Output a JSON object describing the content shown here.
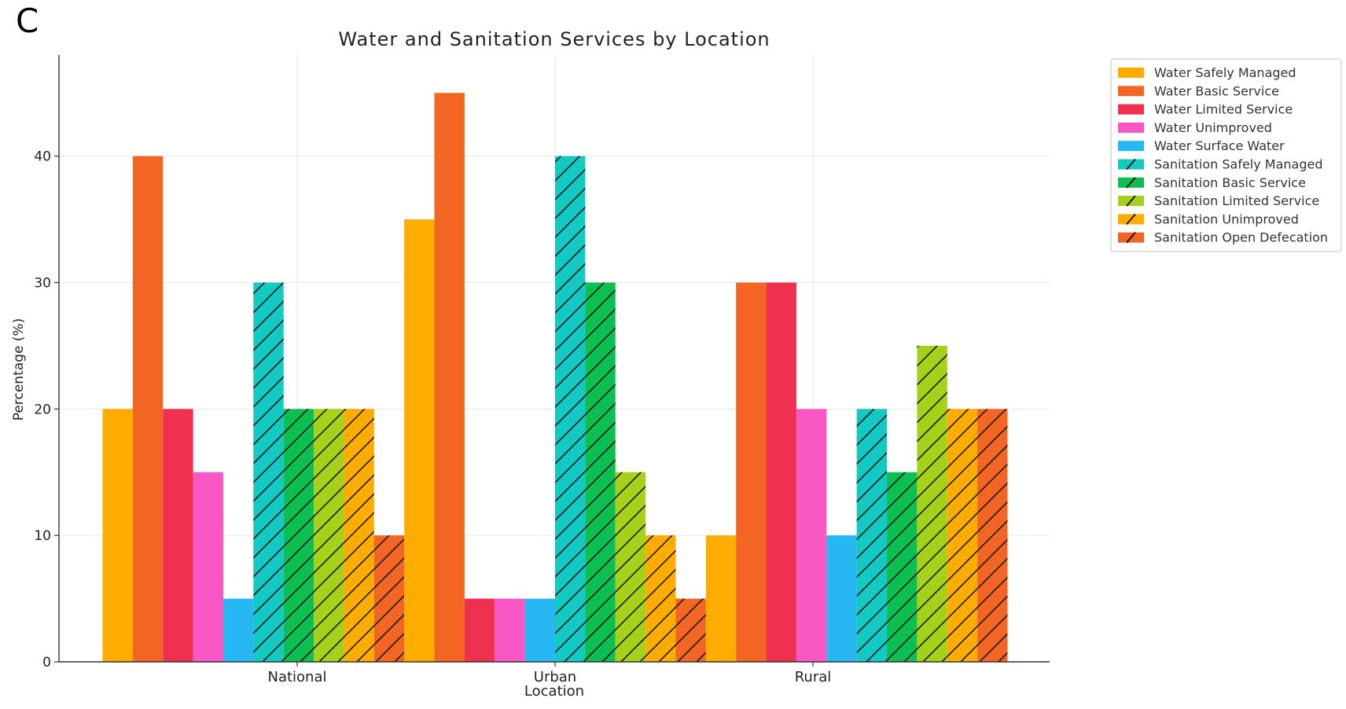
{
  "panel_letter": "C",
  "chart_data": {
    "type": "bar",
    "title": "Water and Sanitation Services by Location",
    "xlabel": "Location",
    "ylabel": "Percentage (%)",
    "categories": [
      "National",
      "Urban",
      "Rural"
    ],
    "ylim": [
      0,
      48
    ],
    "yticks": [
      0,
      10,
      20,
      30,
      40
    ],
    "grid": true,
    "legend_position": "outside-top-right",
    "series": [
      {
        "name": "Water Safely Managed",
        "color": "#FFAC00",
        "hatch": false,
        "values": [
          20,
          35,
          10
        ]
      },
      {
        "name": "Water Basic Service",
        "color": "#F26522",
        "hatch": false,
        "values": [
          40,
          45,
          30
        ]
      },
      {
        "name": "Water Limited Service",
        "color": "#F0304F",
        "hatch": false,
        "values": [
          20,
          5,
          30
        ]
      },
      {
        "name": "Water Unimproved",
        "color": "#F857C4",
        "hatch": false,
        "values": [
          15,
          5,
          20
        ]
      },
      {
        "name": "Water Surface Water",
        "color": "#27B7F2",
        "hatch": false,
        "values": [
          5,
          5,
          10
        ]
      },
      {
        "name": "Sanitation Safely Managed",
        "color": "#13C9C1",
        "hatch": true,
        "values": [
          30,
          40,
          20
        ]
      },
      {
        "name": "Sanitation Basic Service",
        "color": "#0DBF50",
        "hatch": true,
        "values": [
          20,
          30,
          15
        ]
      },
      {
        "name": "Sanitation Limited Service",
        "color": "#A6D11A",
        "hatch": true,
        "values": [
          20,
          15,
          25
        ]
      },
      {
        "name": "Sanitation Unimproved",
        "color": "#FFAC00",
        "hatch": true,
        "values": [
          20,
          10,
          20
        ]
      },
      {
        "name": "Sanitation Open Defecation",
        "color": "#F26522",
        "hatch": true,
        "values": [
          10,
          5,
          20
        ]
      }
    ]
  }
}
